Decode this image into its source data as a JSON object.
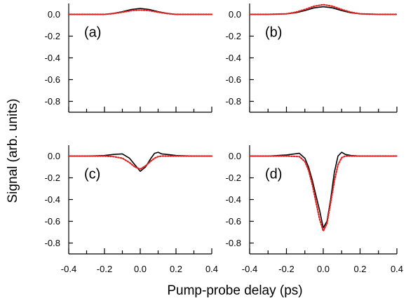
{
  "chart_data": {
    "type": "line",
    "xlabel": "Pump-probe delay (ps)",
    "ylabel": "Signal (arb. units)",
    "xlim": [
      -0.4,
      0.4
    ],
    "ylim": [
      -0.9,
      0.1
    ],
    "x_ticks": [
      "-0.4",
      "-0.2",
      "0.0",
      "0.2",
      "0.4"
    ],
    "y_ticks": [
      "0.0",
      "-0.2",
      "-0.4",
      "-0.6",
      "-0.8"
    ],
    "grid": false,
    "colors": {
      "measured": "#000000",
      "fit": "#e0211f"
    },
    "panels": [
      {
        "label": "(a)",
        "series": [
          {
            "style": "solid",
            "color": "#000000",
            "x": [
              -0.4,
              -0.3,
              -0.2,
              -0.15,
              -0.1,
              -0.05,
              0.0,
              0.05,
              0.1,
              0.15,
              0.2,
              0.3,
              0.4
            ],
            "y": [
              0.0,
              0.0,
              0.0,
              0.01,
              0.025,
              0.045,
              0.055,
              0.045,
              0.025,
              0.01,
              0.0,
              0.0,
              0.0
            ]
          },
          {
            "style": "dotted",
            "color": "#e0211f",
            "x": [
              -0.4,
              -0.3,
              -0.2,
              -0.15,
              -0.1,
              -0.05,
              0.0,
              0.05,
              0.1,
              0.15,
              0.2,
              0.3,
              0.4
            ],
            "y": [
              0.0,
              0.0,
              0.0,
              0.008,
              0.02,
              0.035,
              0.04,
              0.035,
              0.02,
              0.008,
              0.0,
              0.0,
              0.0
            ]
          }
        ]
      },
      {
        "label": "(b)",
        "series": [
          {
            "style": "solid",
            "color": "#000000",
            "x": [
              -0.4,
              -0.3,
              -0.2,
              -0.15,
              -0.1,
              -0.05,
              0.0,
              0.05,
              0.1,
              0.15,
              0.2,
              0.3,
              0.4
            ],
            "y": [
              0.0,
              0.0,
              0.005,
              0.015,
              0.035,
              0.06,
              0.07,
              0.06,
              0.035,
              0.015,
              0.005,
              0.0,
              0.0
            ]
          },
          {
            "style": "dotted",
            "color": "#e0211f",
            "x": [
              -0.4,
              -0.3,
              -0.2,
              -0.15,
              -0.1,
              -0.05,
              0.0,
              0.05,
              0.1,
              0.15,
              0.2,
              0.3,
              0.4
            ],
            "y": [
              0.0,
              0.0,
              0.005,
              0.02,
              0.045,
              0.075,
              0.09,
              0.075,
              0.045,
              0.02,
              0.005,
              0.0,
              0.0
            ]
          }
        ]
      },
      {
        "label": "(c)",
        "series": [
          {
            "style": "solid",
            "color": "#000000",
            "x": [
              -0.4,
              -0.3,
              -0.2,
              -0.15,
              -0.1,
              -0.06,
              -0.03,
              0.0,
              0.03,
              0.06,
              0.08,
              0.1,
              0.12,
              0.15,
              0.2,
              0.3,
              0.4
            ],
            "y": [
              0.0,
              0.0,
              0.005,
              0.015,
              0.02,
              -0.02,
              -0.08,
              -0.14,
              -0.1,
              -0.02,
              0.025,
              0.035,
              0.02,
              0.015,
              0.005,
              0.0,
              0.0
            ]
          },
          {
            "style": "dotted",
            "color": "#e0211f",
            "x": [
              -0.4,
              -0.3,
              -0.2,
              -0.15,
              -0.1,
              -0.06,
              -0.03,
              0.0,
              0.03,
              0.06,
              0.08,
              0.1,
              0.12,
              0.15,
              0.2,
              0.3,
              0.4
            ],
            "y": [
              0.0,
              0.0,
              0.0,
              -0.005,
              -0.02,
              -0.06,
              -0.1,
              -0.12,
              -0.09,
              -0.045,
              -0.02,
              -0.005,
              0.0,
              0.0,
              0.0,
              0.0,
              0.0
            ]
          }
        ]
      },
      {
        "label": "(d)",
        "series": [
          {
            "style": "solid",
            "color": "#000000",
            "x": [
              -0.4,
              -0.3,
              -0.2,
              -0.13,
              -0.1,
              -0.08,
              -0.06,
              -0.04,
              -0.02,
              0.0,
              0.02,
              0.04,
              0.06,
              0.08,
              0.1,
              0.12,
              0.15,
              0.2,
              0.3,
              0.4
            ],
            "y": [
              0.0,
              0.0,
              0.01,
              0.025,
              -0.02,
              -0.1,
              -0.22,
              -0.36,
              -0.5,
              -0.66,
              -0.6,
              -0.4,
              -0.15,
              0.0,
              0.035,
              0.015,
              0.005,
              0.0,
              0.0,
              0.0
            ]
          },
          {
            "style": "dotted",
            "color": "#e0211f",
            "x": [
              -0.4,
              -0.3,
              -0.2,
              -0.13,
              -0.1,
              -0.08,
              -0.06,
              -0.04,
              -0.02,
              0.0,
              0.02,
              0.04,
              0.06,
              0.08,
              0.1,
              0.12,
              0.15,
              0.2,
              0.3,
              0.4
            ],
            "y": [
              0.0,
              0.0,
              0.0,
              -0.005,
              -0.05,
              -0.13,
              -0.26,
              -0.42,
              -0.58,
              -0.69,
              -0.62,
              -0.43,
              -0.23,
              -0.08,
              -0.015,
              0.0,
              0.0,
              0.0,
              0.0,
              0.0
            ]
          }
        ]
      }
    ]
  }
}
